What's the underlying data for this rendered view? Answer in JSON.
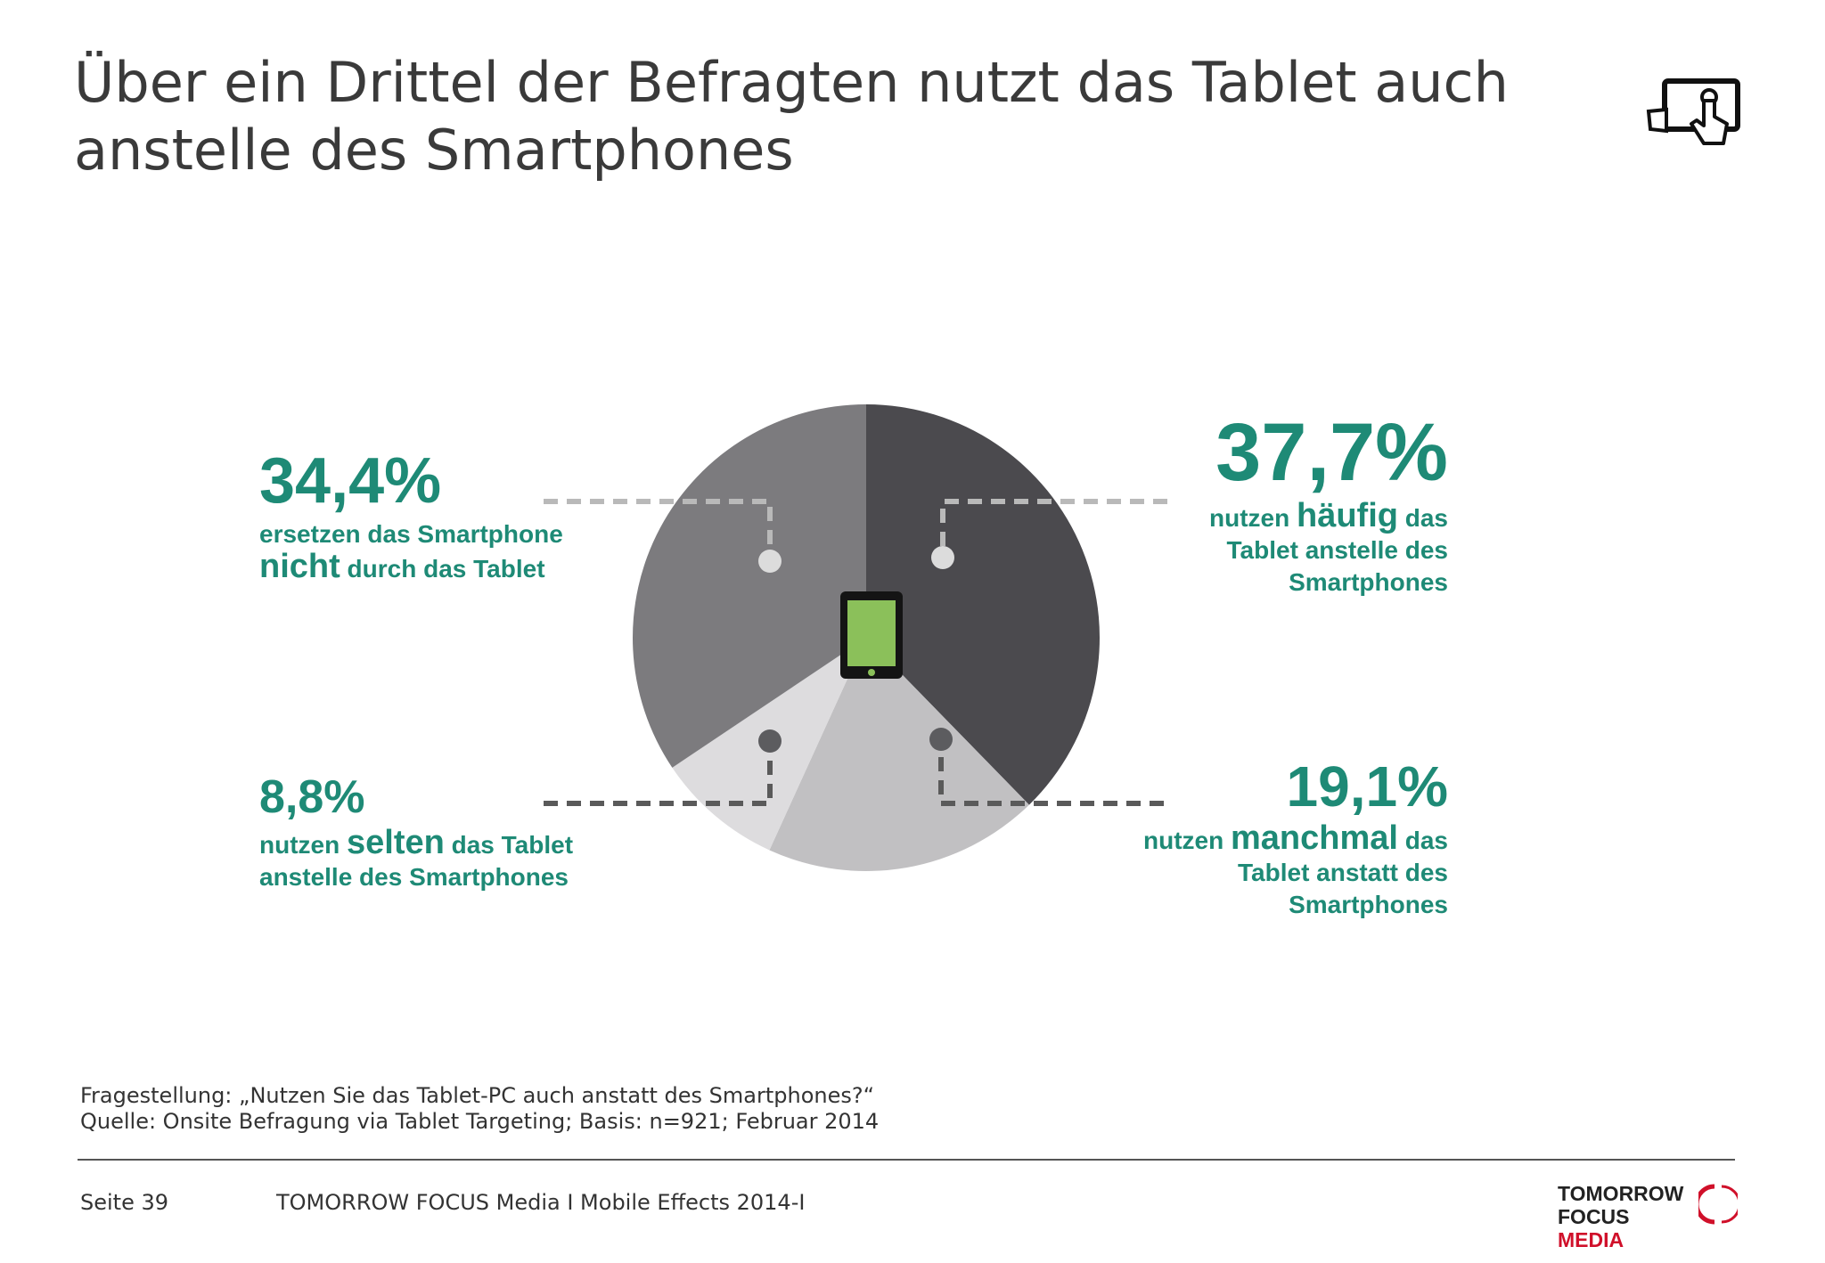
{
  "title": {
    "line1": "Über ein Drittel der Befragten nutzt das Tablet auch",
    "line2": "anstelle des Smartphones"
  },
  "icons": {
    "corner": "tablet-touch-icon",
    "center": "tablet-icon",
    "logo_mark": "tomorrow-focus-ring-icon"
  },
  "colors": {
    "accent": "#1e8a76",
    "slice_haeufig": "#4b4a4e",
    "slice_manchmal": "#c1c0c2",
    "slice_selten": "#dddcde",
    "slice_nicht": "#7c7b7e",
    "tablet_screen": "#8bc05a",
    "logo_red": "#d0102a"
  },
  "chart_data": {
    "type": "pie",
    "slices": [
      {
        "key": "haeufig",
        "value": 37.7,
        "label": "37,7%",
        "color": "#4b4a4e"
      },
      {
        "key": "manchmal",
        "value": 19.1,
        "label": "19,1%",
        "color": "#c1c0c2"
      },
      {
        "key": "selten",
        "value": 8.8,
        "label": "8,8%",
        "color": "#dddcde"
      },
      {
        "key": "nicht",
        "value": 34.4,
        "label": "34,4%",
        "color": "#7c7b7e"
      }
    ],
    "annotations": {
      "nicht": {
        "pct": "34,4%",
        "text1": "ersetzen das Smartphone",
        "em": "nicht",
        "text2": " durch das Tablet"
      },
      "haeufig": {
        "pct": "37,7%",
        "pre": "nutzen ",
        "em": "häufig",
        "post": " das",
        "line2": "Tablet anstelle des",
        "line3": "Smartphones"
      },
      "selten": {
        "pct": "8,8%",
        "pre": "nutzen ",
        "em": "selten",
        "post": " das Tablet",
        "line2": "anstelle des Smartphones"
      },
      "manchmal": {
        "pct": "19,1%",
        "pre": "nutzen ",
        "em": "manchmal",
        "post": " das",
        "line2": "Tablet anstatt des",
        "line3": "Smartphones"
      }
    }
  },
  "footnote": {
    "question": "Fragestellung: „Nutzen Sie das Tablet-PC auch anstatt des Smartphones?“",
    "source": "Quelle: Onsite Befragung via Tablet Targeting; Basis: n=921; Februar 2014"
  },
  "footer": {
    "page": "Seite 39",
    "text": "TOMORROW FOCUS Media  I  Mobile Effects 2014-I"
  },
  "logo": {
    "line1": "TOMORROW",
    "line2a": "FOCUS ",
    "line2b": "MEDIA"
  }
}
